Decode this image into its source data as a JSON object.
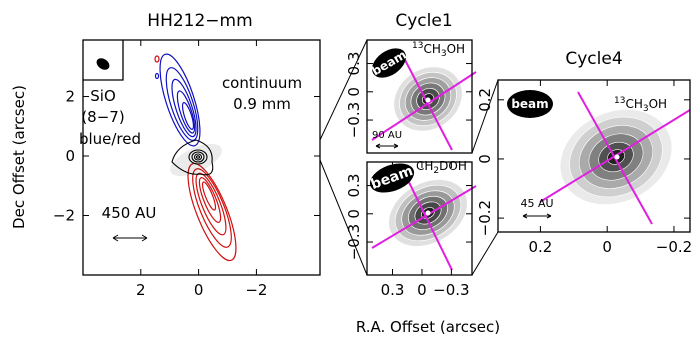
{
  "chart_data": [
    {
      "type": "contour",
      "title": "HH212−mm",
      "xlim": [
        4,
        -4.2
      ],
      "ylim": [
        -4,
        3.9
      ],
      "xticks": [
        2,
        0,
        {
          "value": -2,
          "label": "−2"
        }
      ],
      "yticks": [
        2,
        0,
        {
          "value": -2,
          "label": "−2"
        }
      ],
      "annotations": [
        "SiO",
        "(8−7)",
        "blue/red",
        "continuum",
        "0.9 mm",
        "450 AU"
      ]
    },
    {
      "type": "contour",
      "title": "Cycle1",
      "xlim": [
        0.56,
        -0.51
      ],
      "ylim": [
        -0.65,
        0.55
      ],
      "yticks": [
        0.3,
        0,
        {
          "value": -0.3,
          "label": "−0.3"
        }
      ],
      "beam": "beam",
      "molecule": {
        "sup": "13",
        "main": "CH",
        "sub": "3",
        "rest": "OH"
      },
      "scale": "90 AU"
    },
    {
      "type": "contour",
      "xlim": [
        0.56,
        -0.51
      ],
      "ylim": [
        -0.65,
        0.55
      ],
      "xticks": [
        0.3,
        0,
        {
          "value": -0.3,
          "label": "−0.3"
        }
      ],
      "yticks": [
        0.3,
        0,
        {
          "value": -0.3,
          "label": "−0.3"
        }
      ],
      "beam": "beam",
      "molecule": {
        "main": "CH",
        "sub": "2",
        "rest": "DOH"
      }
    },
    {
      "type": "contour",
      "title": "Cycle4",
      "xlim": [
        0.327,
        -0.248
      ],
      "ylim": [
        -0.247,
        0.267
      ],
      "xticks": [
        0.2,
        0,
        {
          "value": -0.2,
          "label": "−0.2"
        }
      ],
      "yticks": [
        0.2,
        0,
        {
          "value": -0.2,
          "label": "−0.2"
        }
      ],
      "beam": "beam",
      "molecule": {
        "sup": "13",
        "main": "CH",
        "sub": "3",
        "rest": "OH"
      },
      "scale": "45 AU"
    }
  ],
  "axis_labels": {
    "y": "Dec Offset (arcsec)",
    "x": "R.A. Offset (arcsec)"
  }
}
